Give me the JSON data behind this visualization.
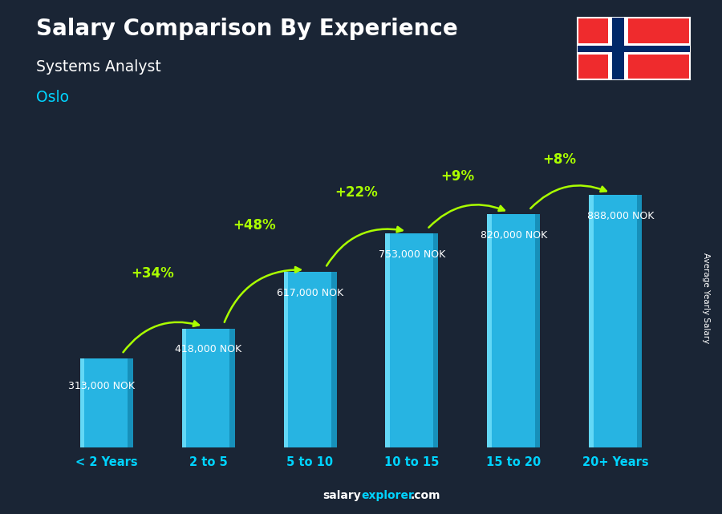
{
  "title": "Salary Comparison By Experience",
  "subtitle": "Systems Analyst",
  "city": "Oslo",
  "categories": [
    "< 2 Years",
    "2 to 5",
    "5 to 10",
    "10 to 15",
    "15 to 20",
    "20+ Years"
  ],
  "values": [
    313000,
    418000,
    617000,
    753000,
    820000,
    888000
  ],
  "value_labels": [
    "313,000 NOK",
    "418,000 NOK",
    "617,000 NOK",
    "753,000 NOK",
    "820,000 NOK",
    "888,000 NOK"
  ],
  "pct_changes": [
    "+34%",
    "+48%",
    "+22%",
    "+9%",
    "+8%"
  ],
  "bar_main_color": "#29c5f6",
  "bar_light_color": "#7de8ff",
  "bar_dark_color": "#1488b0",
  "bg_color": "#1a2535",
  "title_color": "#ffffff",
  "subtitle_color": "#ffffff",
  "city_color": "#00d4ff",
  "value_label_color": "#ffffff",
  "pct_color": "#aaff00",
  "tick_color": "#00d4ff",
  "ylabel_text": "Average Yearly Salary",
  "footer_salary_color": "#ffffff",
  "footer_explorer_color": "#00d4ff",
  "footer_com_color": "#ffffff",
  "ylim_max": 1050000,
  "bar_width": 0.52,
  "flag_red": "#EF2B2D",
  "flag_blue": "#002868",
  "flag_white": "#FFFFFF"
}
